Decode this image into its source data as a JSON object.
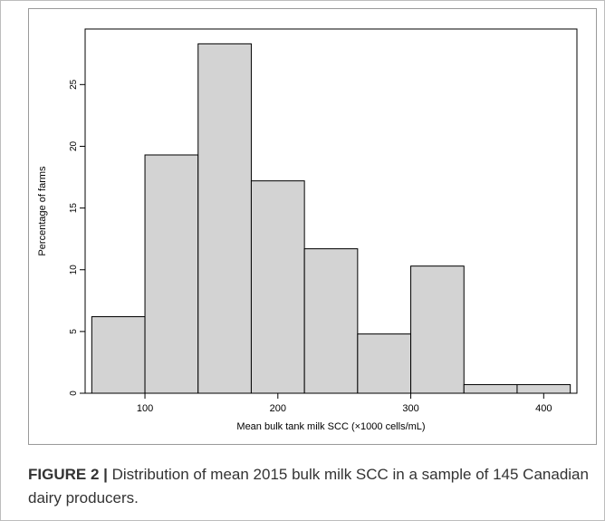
{
  "chart_data": {
    "type": "bar",
    "subtype": "histogram",
    "xlabel": "Mean bulk tank milk SCC (×1000 cells/mL)",
    "ylabel": "Percentage of farms",
    "bin_edges": [
      60,
      100,
      140,
      180,
      220,
      260,
      300,
      340,
      380,
      420
    ],
    "values": [
      6.2,
      19.3,
      28.3,
      17.2,
      11.7,
      4.8,
      10.3,
      0.7,
      0.7
    ],
    "xlim": [
      55,
      425
    ],
    "ylim": [
      0,
      29.5
    ],
    "xticks": [
      100,
      200,
      300,
      400
    ],
    "yticks": [
      0,
      5,
      10,
      15,
      20,
      25
    ],
    "grid": false,
    "bar_color": "#d3d3d3",
    "bar_edge_color": "#000000"
  },
  "caption": {
    "label": "FIGURE 2 |",
    "text": "Distribution of mean 2015 bulk milk SCC in a sample of 145 Canadian dairy producers."
  }
}
